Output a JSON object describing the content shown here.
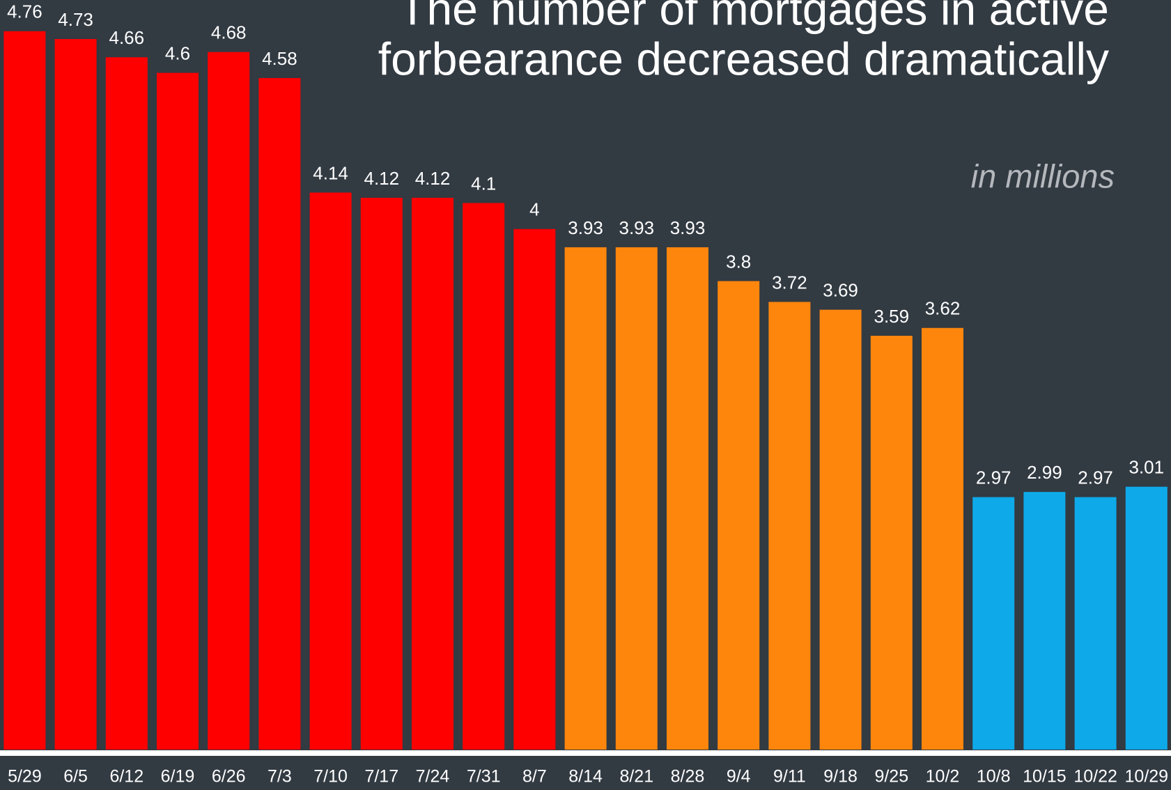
{
  "chart_data": {
    "type": "bar",
    "title": [
      "The number of mortgages in active",
      "forbearance decreased dramatically"
    ],
    "subtitle": "in millions",
    "categories": [
      "5/29",
      "6/5",
      "6/12",
      "6/19",
      "6/26",
      "7/3",
      "7/10",
      "7/17",
      "7/24",
      "7/31",
      "8/7",
      "8/14",
      "8/21",
      "8/28",
      "9/4",
      "9/11",
      "9/18",
      "9/25",
      "10/2",
      "10/8",
      "10/15",
      "10/22",
      "10/29"
    ],
    "values": [
      4.76,
      4.73,
      4.66,
      4.6,
      4.68,
      4.58,
      4.14,
      4.12,
      4.12,
      4.1,
      4,
      3.93,
      3.93,
      3.93,
      3.8,
      3.72,
      3.69,
      3.59,
      3.62,
      2.97,
      2.99,
      2.97,
      3.01
    ],
    "colors": [
      "#ff0000",
      "#ff0000",
      "#ff0000",
      "#ff0000",
      "#ff0000",
      "#ff0000",
      "#ff0000",
      "#ff0000",
      "#ff0000",
      "#ff0000",
      "#ff0000",
      "#ff860d",
      "#ff860d",
      "#ff860d",
      "#ff860d",
      "#ff860d",
      "#ff860d",
      "#ff860d",
      "#ff860d",
      "#0ea9e8",
      "#0ea9e8",
      "#0ea9e8",
      "#0ea9e8"
    ],
    "ylim": [
      2,
      4.88
    ]
  }
}
